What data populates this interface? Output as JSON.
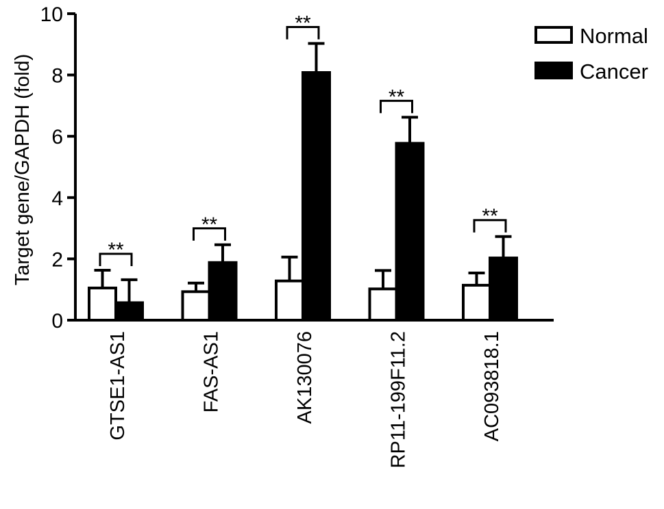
{
  "chart_data": {
    "type": "bar",
    "title": "",
    "xlabel": "",
    "ylabel": "Target gene/GAPDH (fold)",
    "ylim": [
      0,
      10
    ],
    "yticks": [
      "0",
      "2",
      "4",
      "6",
      "8",
      "10"
    ],
    "categories": [
      "GTSE1-AS1",
      "FAS-AS1",
      "AK130076",
      "RP11-199F11.2",
      "AC093818.1"
    ],
    "series": [
      {
        "name": "Normal",
        "values": [
          1.05,
          0.93,
          1.28,
          1.02,
          1.14
        ],
        "errors": [
          0.58,
          0.28,
          0.78,
          0.6,
          0.4
        ],
        "color": "#ffffff"
      },
      {
        "name": "Cancer",
        "values": [
          0.57,
          1.88,
          8.08,
          5.77,
          2.03
        ],
        "errors": [
          0.75,
          0.58,
          0.95,
          0.85,
          0.7
        ],
        "color": "#000000"
      }
    ],
    "significance": [
      "**",
      "**",
      "**",
      "**",
      "**"
    ],
    "legend": {
      "placement": "top-right"
    },
    "grid": false
  }
}
